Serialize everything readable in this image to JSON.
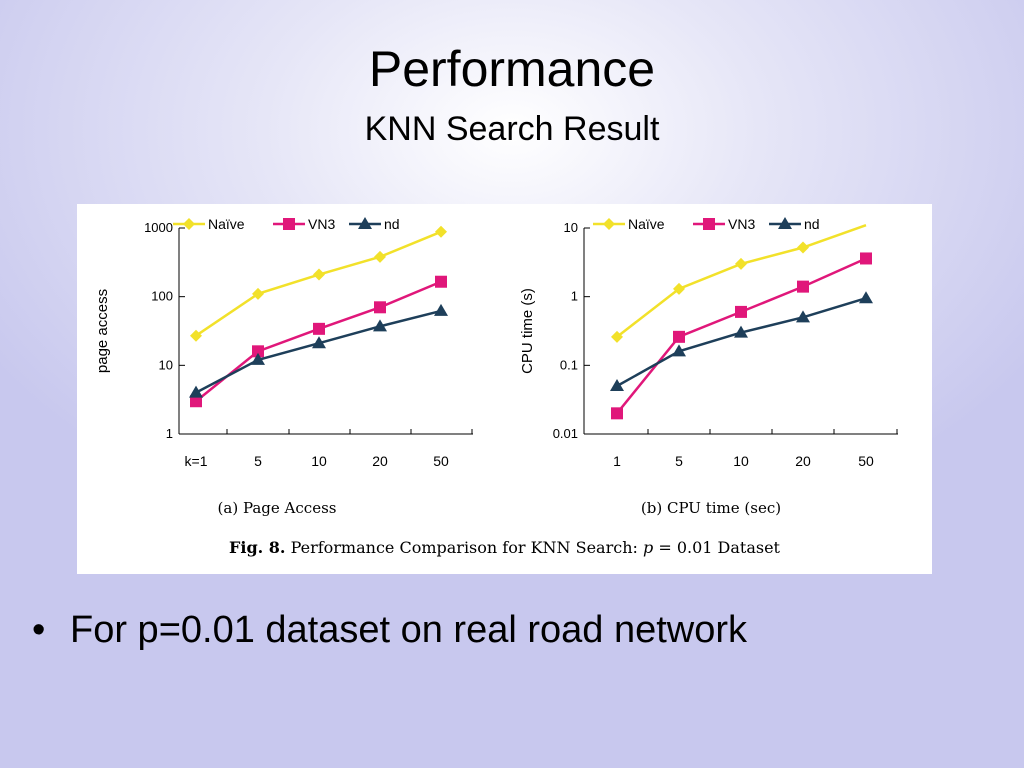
{
  "slide": {
    "title": "Performance",
    "subtitle": "KNN Search Result",
    "bullet": "For p=0.01 dataset on real road network"
  },
  "figure": {
    "caption_label": "Fig. 8.",
    "caption_text": "Performance Comparison for KNN Search:",
    "caption_var": "p",
    "caption_rest": "= 0.01 Dataset"
  },
  "chart_data": [
    {
      "type": "line",
      "title": "(a) Page Access",
      "ylabel": "page access",
      "xlabel": "",
      "yscale": "log",
      "ylim": [
        1,
        1000
      ],
      "yticks": [
        1,
        10,
        100,
        1000
      ],
      "ytick_labels": [
        "1",
        "10",
        "100",
        "1000"
      ],
      "categories": [
        "k=1",
        "5",
        "10",
        "20",
        "50"
      ],
      "legend": "top",
      "grid": false,
      "series": [
        {
          "name": "Naïve",
          "color": "#f2e12a",
          "marker": "diamond",
          "values": [
            27,
            110,
            210,
            380,
            880
          ]
        },
        {
          "name": "VN3",
          "color": "#e0177a",
          "marker": "square",
          "values": [
            3,
            16,
            34,
            70,
            165
          ]
        },
        {
          "name": "nd",
          "color": "#1e3f5a",
          "marker": "triangle",
          "values": [
            4,
            12,
            21,
            37,
            62
          ]
        }
      ]
    },
    {
      "type": "line",
      "title": "(b) CPU time (sec)",
      "ylabel": "CPU time (s)",
      "xlabel": "",
      "yscale": "log",
      "ylim": [
        0.01,
        10
      ],
      "yticks": [
        0.01,
        0.1,
        1,
        10
      ],
      "ytick_labels": [
        "0.01",
        "0.1",
        "1",
        "10"
      ],
      "categories": [
        "1",
        "5",
        "10",
        "20",
        "50"
      ],
      "legend": "top",
      "grid": false,
      "series": [
        {
          "name": "Naïve",
          "color": "#f2e12a",
          "marker": "diamond",
          "values": [
            0.26,
            1.3,
            3.0,
            5.2,
            11
          ],
          "marker_mask": [
            true,
            true,
            true,
            true,
            false
          ]
        },
        {
          "name": "VN3",
          "color": "#e0177a",
          "marker": "square",
          "values": [
            0.02,
            0.26,
            0.6,
            1.4,
            3.6
          ]
        },
        {
          "name": "nd",
          "color": "#1e3f5a",
          "marker": "triangle",
          "values": [
            0.05,
            0.16,
            0.3,
            0.5,
            0.95
          ]
        }
      ]
    }
  ]
}
